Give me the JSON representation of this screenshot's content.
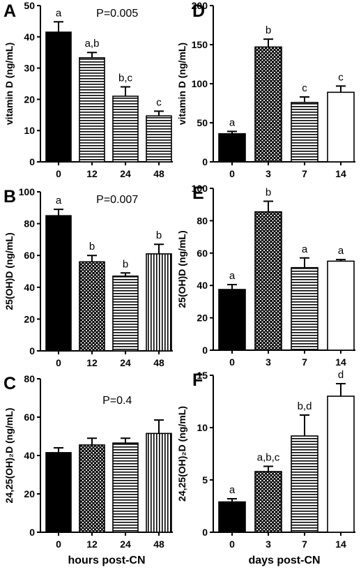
{
  "patterns": [
    "solid",
    "dots",
    "hlines",
    "vlines",
    "open"
  ],
  "chart_data": [
    {
      "panel": "A",
      "type": "bar",
      "ylabel": "vitamin D (ng/mL)",
      "categories": [
        "0",
        "12",
        "24",
        "48"
      ],
      "values": [
        41.5,
        33.3,
        21.0,
        14.7
      ],
      "errors": [
        3.3,
        1.7,
        3.0,
        1.5
      ],
      "letters": [
        "a",
        "a,b",
        "b,c",
        "c"
      ],
      "patterns": [
        0,
        2,
        2,
        2
      ],
      "ylim": [
        0,
        50
      ],
      "yticks": [
        0,
        10,
        20,
        30,
        40,
        50
      ],
      "pvalue": "P=0.005"
    },
    {
      "panel": "B",
      "type": "bar",
      "ylabel": "25(OH)D (ng/mL)",
      "categories": [
        "0",
        "12",
        "24",
        "48"
      ],
      "values": [
        85,
        56,
        47,
        61
      ],
      "errors": [
        4,
        4,
        2,
        6
      ],
      "letters": [
        "a",
        "b",
        "b",
        "b"
      ],
      "patterns": [
        0,
        1,
        2,
        3
      ],
      "ylim": [
        0,
        100
      ],
      "yticks": [
        0,
        20,
        40,
        60,
        80,
        100
      ],
      "pvalue": "P=0.007"
    },
    {
      "panel": "C",
      "type": "bar",
      "ylabel": "24,25(OH)₂D (ng/mL)",
      "categories": [
        "0",
        "12",
        "24",
        "48"
      ],
      "values": [
        41.5,
        45.5,
        46.5,
        51.5
      ],
      "errors": [
        2.5,
        3.5,
        2.5,
        7
      ],
      "letters": [
        "",
        "",
        "",
        ""
      ],
      "patterns": [
        0,
        1,
        2,
        3
      ],
      "ylim": [
        0,
        80
      ],
      "yticks": [
        0,
        20,
        40,
        60,
        80
      ],
      "pvalue": "P=0.4",
      "xlabel": "hours post-CN"
    },
    {
      "panel": "D",
      "type": "bar",
      "ylabel": "vitamin D  (ng/mL)",
      "categories": [
        "0",
        "3",
        "7",
        "14"
      ],
      "values": [
        36,
        147,
        76,
        89
      ],
      "errors": [
        3,
        10,
        7,
        8
      ],
      "letters": [
        "a",
        "b",
        "c",
        "c"
      ],
      "patterns": [
        0,
        1,
        2,
        4
      ],
      "ylim": [
        0,
        200
      ],
      "yticks": [
        0,
        50,
        100,
        150,
        200
      ],
      "pvalue": ""
    },
    {
      "panel": "E",
      "type": "bar",
      "ylabel": "25(OH)D (ng/mL)",
      "categories": [
        "0",
        "3",
        "7",
        "14"
      ],
      "values": [
        37.5,
        85.5,
        51,
        55
      ],
      "errors": [
        3,
        6.5,
        6,
        1
      ],
      "letters": [
        "a",
        "b",
        "a",
        "a"
      ],
      "patterns": [
        0,
        1,
        2,
        4
      ],
      "ylim": [
        0,
        100
      ],
      "yticks": [
        0,
        20,
        40,
        60,
        80,
        100
      ],
      "pvalue": ""
    },
    {
      "panel": "F",
      "type": "bar",
      "ylabel": "24,25(OH)₂D (ng/mL)",
      "categories": [
        "0",
        "3",
        "7",
        "14"
      ],
      "values": [
        2.9,
        5.8,
        9.2,
        13.0
      ],
      "errors": [
        0.3,
        0.5,
        2.0,
        1.2
      ],
      "letters": [
        "a",
        "a,b,c",
        "b,d",
        "d"
      ],
      "patterns": [
        0,
        1,
        2,
        4
      ],
      "ylim": [
        0,
        15
      ],
      "yticks": [
        0,
        5,
        10,
        15
      ],
      "pvalue": "",
      "xlabel": "days post-CN"
    }
  ]
}
